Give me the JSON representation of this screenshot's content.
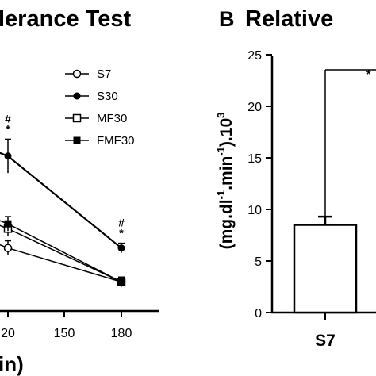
{
  "panel_a": {
    "title": "lerance Test",
    "xlabel": "in)"
  },
  "panel_b": {
    "letter": "B",
    "title": "Relative",
    "ylabel_main": "(mg.dl",
    "ylabel_sup1": "-1",
    "ylabel_mid": ".min",
    "ylabel_sup2": "-1",
    "ylabel_end": ").10",
    "ylabel_sup3": "3",
    "sig_marker": "*"
  },
  "chart_data": [
    {
      "type": "line",
      "title": "lerance Test",
      "xlabel": "in)",
      "x_ticks": [
        "20",
        "150",
        "180"
      ],
      "x": [
        120,
        180
      ],
      "series": [
        {
          "name": "S7",
          "marker": "open-circle",
          "values": [
            2.6,
            1.9
          ],
          "error": [
            0.15,
            0.1
          ]
        },
        {
          "name": "S30",
          "marker": "filled-circle",
          "values": [
            4.5,
            2.6
          ],
          "error": [
            0.35,
            0.1
          ]
        },
        {
          "name": "MF30",
          "marker": "open-square",
          "values": [
            3.0,
            1.9
          ],
          "error": [
            0.15,
            0.1
          ]
        },
        {
          "name": "FMF30",
          "marker": "filled-square",
          "values": [
            3.1,
            1.9
          ],
          "error": [
            0.15,
            0.1
          ]
        }
      ],
      "annotations": [
        {
          "x": 120,
          "text": [
            "#",
            "*"
          ]
        },
        {
          "x": 180,
          "text": [
            "#",
            "*"
          ]
        }
      ],
      "legend": "top-right",
      "grid": false
    },
    {
      "type": "bar",
      "title": "Relative",
      "ylabel": "(mg.dl-1.min-1).103",
      "categories": [
        "S7"
      ],
      "values": [
        8.5
      ],
      "error": [
        0.8
      ],
      "y_ticks": [
        "25",
        "20",
        "15",
        "10",
        "5",
        "0"
      ],
      "ylim": [
        0,
        25
      ],
      "annotations": [
        "*"
      ],
      "grid": false
    }
  ]
}
